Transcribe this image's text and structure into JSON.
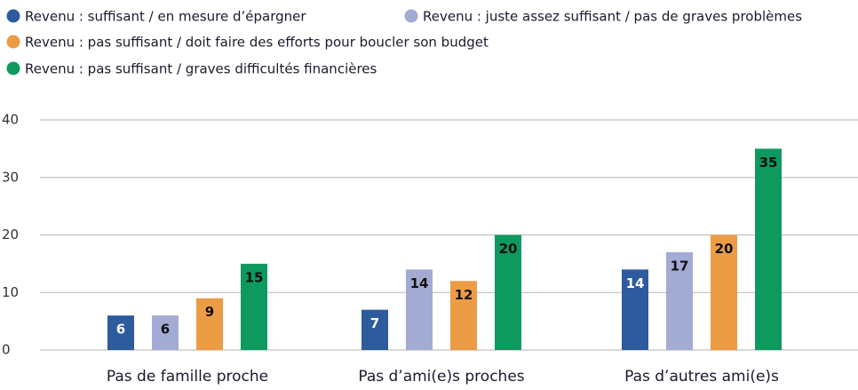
{
  "chart_data": {
    "type": "bar",
    "categories": [
      "Pas de famille proche",
      "Pas d’ami(e)s proches",
      "Pas d’autres ami(e)s"
    ],
    "series": [
      {
        "name": "Revenu : suffisant / en mesure d’épargner",
        "color": "#2e5a9e",
        "values": [
          6,
          7,
          14
        ]
      },
      {
        "name": "Revenu : juste assez suffisant / pas de graves problèmes",
        "color": "#a3aad4",
        "values": [
          6,
          14,
          17
        ]
      },
      {
        "name": "Revenu : pas suffisant / doit faire des efforts pour boucler son budget",
        "color": "#eb9c45",
        "values": [
          9,
          12,
          20
        ]
      },
      {
        "name": "Revenu : pas suffisant / graves difficultés financières",
        "color": "#0e9a5f",
        "values": [
          15,
          20,
          35
        ]
      }
    ],
    "ylim": [
      0,
      40
    ],
    "yticks": [
      0,
      10,
      20,
      30,
      40
    ],
    "grid": true
  }
}
